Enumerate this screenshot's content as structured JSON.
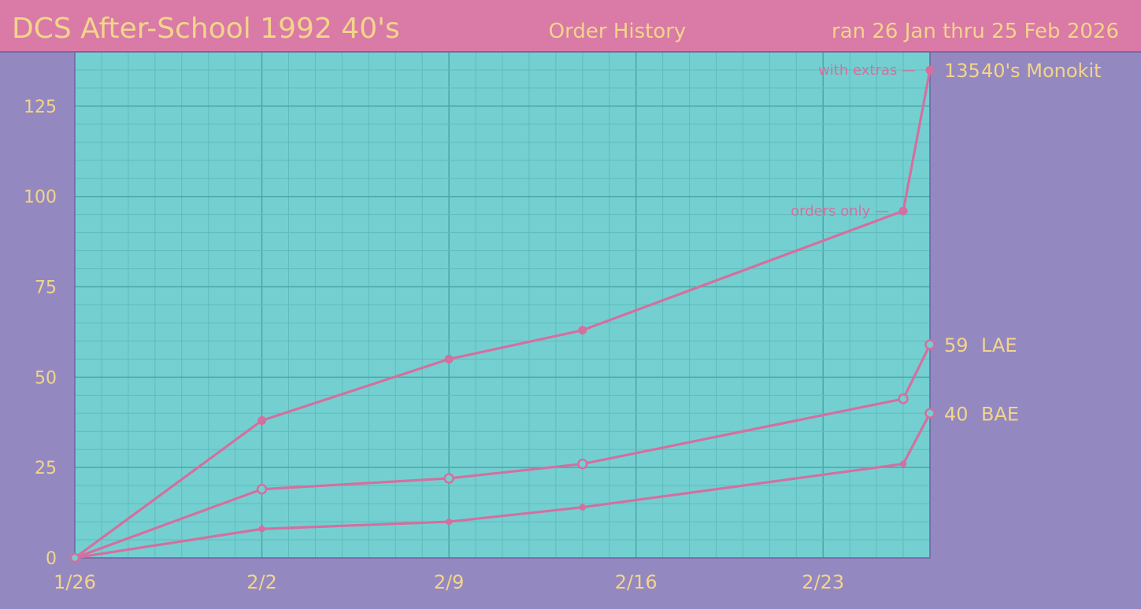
{
  "header": {
    "title": "DCS After-School 1992 40's",
    "subtitle": "Order History",
    "run_dates": "ran 26 Jan thru 25 Feb 2026"
  },
  "colors": {
    "background": "#9488c0",
    "header": "#d97aa7",
    "plot": "#74d0d0",
    "grid_minor": "#5fbcbc",
    "grid_major": "#4aa7a8",
    "line": "#d46fa0",
    "text": "#f3d58a"
  },
  "chart_data": {
    "type": "line",
    "x_axis": {
      "start": "2026-01-26",
      "end": "2026-02-27",
      "tick_labels": [
        "1/26",
        "2/2",
        "2/9",
        "2/16",
        "2/23"
      ],
      "tick_dates": [
        "2026-01-26",
        "2026-02-02",
        "2026-02-09",
        "2026-02-16",
        "2026-02-23"
      ]
    },
    "ylim": [
      0,
      140
    ],
    "y_ticks": [
      0,
      25,
      50,
      75,
      100,
      125
    ],
    "grid": true,
    "series": [
      {
        "name": "40's Monokit",
        "end_label": "135",
        "marker": "filled",
        "points": [
          {
            "x": "2026-01-26",
            "y": 0
          },
          {
            "x": "2026-02-02",
            "y": 38
          },
          {
            "x": "2026-02-09",
            "y": 55
          },
          {
            "x": "2026-02-14",
            "y": 63
          },
          {
            "x": "2026-02-26",
            "y": 96
          },
          {
            "x": "2026-02-27",
            "y": 135
          }
        ]
      },
      {
        "name": "LAE",
        "end_label": "59",
        "marker": "hollow",
        "points": [
          {
            "x": "2026-01-26",
            "y": 0
          },
          {
            "x": "2026-02-02",
            "y": 19
          },
          {
            "x": "2026-02-09",
            "y": 22
          },
          {
            "x": "2026-02-14",
            "y": 26
          },
          {
            "x": "2026-02-26",
            "y": 44
          },
          {
            "x": "2026-02-27",
            "y": 59
          }
        ]
      },
      {
        "name": "BAE",
        "end_label": "40",
        "marker": "small",
        "points": [
          {
            "x": "2026-01-26",
            "y": 0
          },
          {
            "x": "2026-02-02",
            "y": 8
          },
          {
            "x": "2026-02-09",
            "y": 10
          },
          {
            "x": "2026-02-14",
            "y": 14
          },
          {
            "x": "2026-02-26",
            "y": 26
          },
          {
            "x": "2026-02-27",
            "y": 40
          }
        ]
      }
    ],
    "annotations": [
      {
        "text": "with extras —",
        "x": "2026-02-27",
        "y": 135
      },
      {
        "text": "orders only —",
        "x": "2026-02-26",
        "y": 96
      }
    ]
  }
}
